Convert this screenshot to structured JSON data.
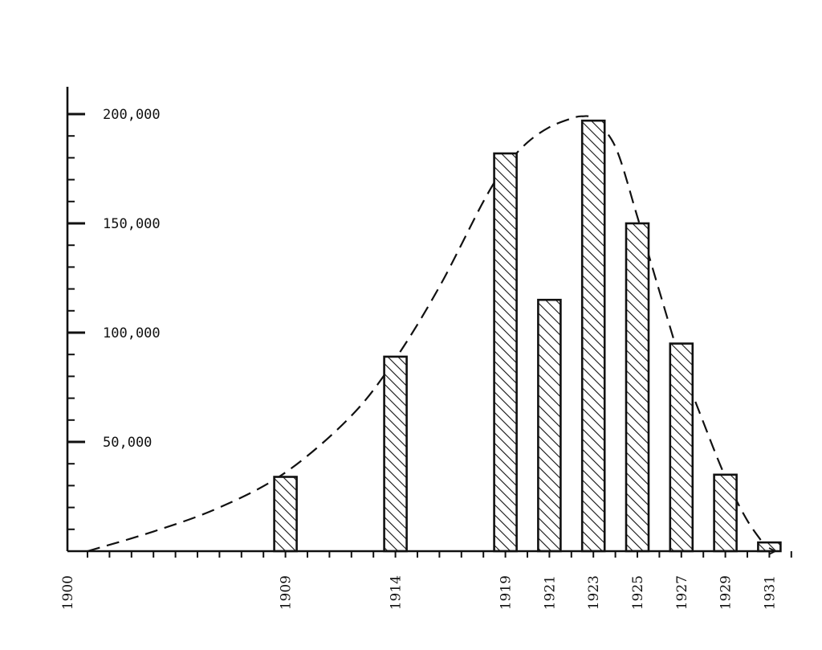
{
  "chart_data": {
    "type": "bar",
    "title": "",
    "xlabel": "",
    "ylabel": "",
    "categories": [
      "1909",
      "1914",
      "1919",
      "1921",
      "1923",
      "1925",
      "1927",
      "1929",
      "1931"
    ],
    "values": [
      34000,
      89000,
      182000,
      115000,
      197000,
      150000,
      95000,
      35000,
      4000
    ],
    "x_tick_labels": [
      "1900",
      "1909",
      "1914",
      "1919",
      "1921",
      "1923",
      "1925",
      "1927",
      "1929",
      "1931"
    ],
    "y_tick_labels": [
      "50,000",
      "100,000",
      "150,000",
      "200,000"
    ],
    "y_tick_values": [
      50000,
      100000,
      150000,
      200000
    ],
    "ylim": [
      0,
      200000
    ],
    "xlim": [
      1900,
      1932
    ],
    "bar_fill": "hatched",
    "grid": false,
    "trend_curve": {
      "style": "dashed",
      "x": [
        1900,
        1903,
        1906,
        1909,
        1912,
        1914,
        1916,
        1918,
        1919,
        1920,
        1921,
        1922,
        1922.5,
        1923,
        1924,
        1925,
        1926,
        1927,
        1928,
        1929,
        1930,
        1931
      ],
      "y": [
        0,
        9000,
        20000,
        36000,
        62000,
        88000,
        121000,
        160000,
        176000,
        187000,
        194000,
        198000,
        199000,
        197500,
        185000,
        153000,
        119000,
        86000,
        59000,
        34000,
        14000,
        0
      ]
    }
  },
  "colors": {
    "ink": "#111111",
    "background": "#ffffff"
  }
}
